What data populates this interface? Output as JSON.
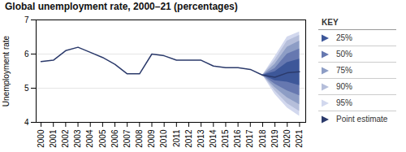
{
  "chart_data": {
    "type": "line",
    "title": "Global unemployment rate, 2000–21 (percentages)",
    "ylabel": "Unemployment rate",
    "legend_title": "KEY",
    "x": [
      2000,
      2001,
      2002,
      2003,
      2004,
      2005,
      2006,
      2007,
      2008,
      2009,
      2010,
      2011,
      2012,
      2013,
      2014,
      2015,
      2016,
      2017,
      2018,
      2019,
      2020,
      2021
    ],
    "series": [
      {
        "name": "25%",
        "type": "area",
        "color": "#3d5799",
        "lower": [
          null,
          null,
          null,
          null,
          null,
          null,
          null,
          null,
          null,
          null,
          null,
          null,
          null,
          null,
          null,
          null,
          null,
          null,
          5.38,
          5.22,
          5.18,
          5.08
        ],
        "upper": [
          null,
          null,
          null,
          null,
          null,
          null,
          null,
          null,
          null,
          null,
          null,
          null,
          null,
          null,
          null,
          null,
          null,
          null,
          5.38,
          5.48,
          5.75,
          5.85
        ]
      },
      {
        "name": "50%",
        "type": "area",
        "color": "#6678b0",
        "lower": [
          null,
          null,
          null,
          null,
          null,
          null,
          null,
          null,
          null,
          null,
          null,
          null,
          null,
          null,
          null,
          null,
          null,
          null,
          5.38,
          5.12,
          4.92,
          4.78
        ],
        "upper": [
          null,
          null,
          null,
          null,
          null,
          null,
          null,
          null,
          null,
          null,
          null,
          null,
          null,
          null,
          null,
          null,
          null,
          null,
          5.38,
          5.58,
          6.0,
          6.15
        ]
      },
      {
        "name": "75%",
        "type": "area",
        "color": "#8d9dc5",
        "lower": [
          null,
          null,
          null,
          null,
          null,
          null,
          null,
          null,
          null,
          null,
          null,
          null,
          null,
          null,
          null,
          null,
          null,
          null,
          5.38,
          5.02,
          4.72,
          4.52
        ],
        "upper": [
          null,
          null,
          null,
          null,
          null,
          null,
          null,
          null,
          null,
          null,
          null,
          null,
          null,
          null,
          null,
          null,
          null,
          null,
          5.38,
          5.7,
          6.2,
          6.38
        ]
      },
      {
        "name": "90%",
        "type": "area",
        "color": "#b5beda",
        "lower": [
          null,
          null,
          null,
          null,
          null,
          null,
          null,
          null,
          null,
          null,
          null,
          null,
          null,
          null,
          null,
          null,
          null,
          null,
          5.38,
          4.92,
          4.55,
          4.32
        ],
        "upper": [
          null,
          null,
          null,
          null,
          null,
          null,
          null,
          null,
          null,
          null,
          null,
          null,
          null,
          null,
          null,
          null,
          null,
          null,
          5.38,
          5.82,
          6.38,
          6.55
        ]
      },
      {
        "name": "95%",
        "type": "area",
        "color": "#d2d8ee",
        "lower": [
          null,
          null,
          null,
          null,
          null,
          null,
          null,
          null,
          null,
          null,
          null,
          null,
          null,
          null,
          null,
          null,
          null,
          null,
          5.38,
          4.82,
          4.42,
          4.18
        ],
        "upper": [
          null,
          null,
          null,
          null,
          null,
          null,
          null,
          null,
          null,
          null,
          null,
          null,
          null,
          null,
          null,
          null,
          null,
          null,
          5.38,
          5.92,
          6.5,
          6.65
        ]
      },
      {
        "name": "Point estimate",
        "type": "line",
        "color": "#2b3a6b",
        "values": [
          null,
          null,
          null,
          null,
          null,
          null,
          null,
          null,
          null,
          null,
          null,
          null,
          null,
          null,
          null,
          null,
          null,
          null,
          5.38,
          5.32,
          5.45,
          5.48
        ]
      },
      {
        "type": "line",
        "color": "#2b3a6b",
        "values": [
          5.78,
          5.82,
          6.1,
          6.2,
          6.05,
          5.9,
          5.7,
          5.42,
          5.42,
          6.0,
          5.95,
          5.82,
          5.82,
          5.82,
          5.65,
          5.6,
          5.6,
          5.55,
          5.38,
          null,
          null,
          null
        ]
      }
    ],
    "xlim": [
      1999.6,
      2021.5
    ],
    "xticks": [
      2000,
      2001,
      2002,
      2003,
      2004,
      2005,
      2006,
      2007,
      2008,
      2009,
      2010,
      2011,
      2012,
      2013,
      2014,
      2015,
      2016,
      2017,
      2018,
      2019,
      2020,
      2021
    ],
    "ylim": [
      4,
      7
    ],
    "yticks": [
      4,
      5,
      6,
      7
    ],
    "grid": true,
    "legend": "right"
  }
}
